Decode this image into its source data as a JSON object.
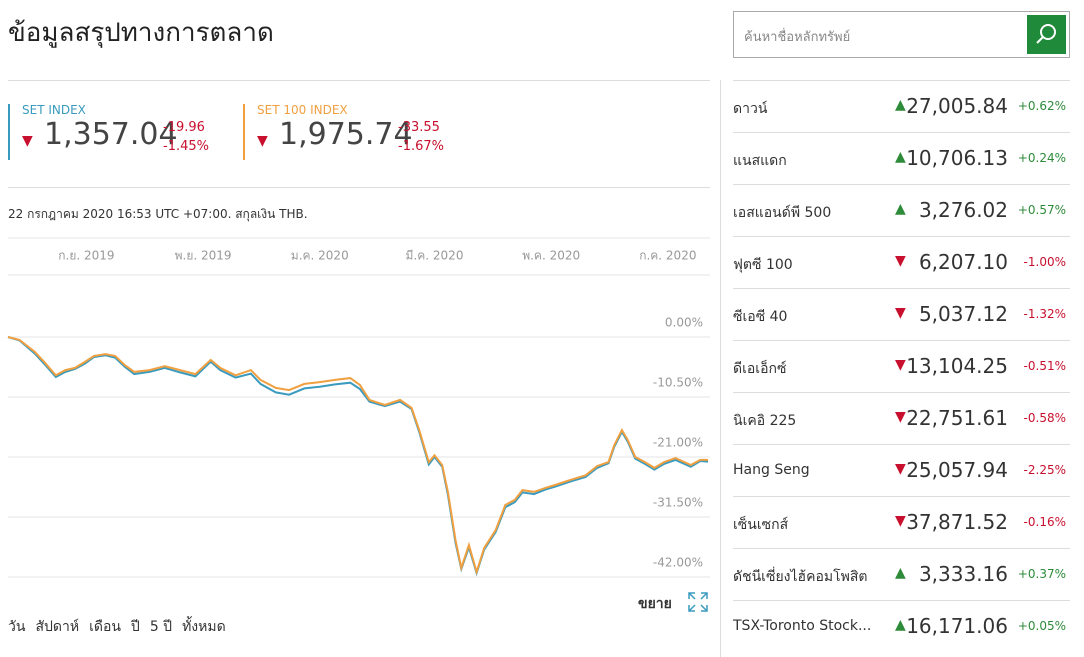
{
  "header": {
    "title": "ข้อมูลสรุปทางการตลาด"
  },
  "search": {
    "placeholder": "ค้นหาชื่อหลักทรัพย์"
  },
  "indices": [
    {
      "name": "SET INDEX",
      "value": "1,357.04",
      "change": "-19.96",
      "change_percent": "-1.45%"
    },
    {
      "name": "SET 100 INDEX",
      "value": "1,975.74",
      "change": "-33.55",
      "change_percent": "-1.67%"
    }
  ],
  "timestamp": "22 กรกฎาคม 2020 16:53 UTC +07:00. สกุลเงิน THB.",
  "chart_data": {
    "type": "line",
    "x": [
      0,
      6,
      14,
      19,
      25,
      30,
      35,
      40,
      45,
      51,
      56,
      61,
      66,
      74,
      82,
      90,
      98,
      106,
      111,
      119,
      127,
      132,
      140,
      147,
      155,
      163,
      171,
      179,
      184,
      189,
      197,
      205,
      211,
      215,
      220,
      223,
      227,
      230,
      234,
      237,
      241,
      245,
      249,
      255,
      260,
      265,
      269,
      275,
      281,
      286,
      294,
      302,
      308,
      314,
      317,
      321,
      324,
      328,
      333,
      338,
      343,
      349,
      357,
      362,
      366
    ],
    "series": [
      {
        "color": "#3a9bbf",
        "values": [
          0.0,
          -0.6,
          -2.9,
          -4.7,
          -7.0,
          -6.1,
          -5.6,
          -4.7,
          -3.5,
          -3.2,
          -3.6,
          -5.2,
          -6.5,
          -6.1,
          -5.4,
          -6.2,
          -6.9,
          -4.3,
          -5.8,
          -7.1,
          -6.4,
          -8.2,
          -9.7,
          -10.1,
          -9.0,
          -8.7,
          -8.3,
          -8.0,
          -9.1,
          -11.3,
          -12.1,
          -11.3,
          -12.6,
          -16.6,
          -22.3,
          -21.0,
          -22.7,
          -27.6,
          -36.0,
          -40.6,
          -36.8,
          -41.3,
          -37.2,
          -34.1,
          -29.8,
          -28.9,
          -27.2,
          -27.5,
          -26.7,
          -26.2,
          -25.3,
          -24.5,
          -22.9,
          -22.1,
          -19.2,
          -16.6,
          -18.3,
          -21.3,
          -22.2,
          -23.2,
          -22.2,
          -21.5,
          -22.7,
          -21.7,
          -21.8
        ]
      },
      {
        "color": "#f0a040",
        "values": [
          0.0,
          -0.5,
          -2.6,
          -4.4,
          -6.7,
          -5.8,
          -5.4,
          -4.4,
          -3.3,
          -3.0,
          -3.3,
          -4.9,
          -6.1,
          -5.8,
          -5.1,
          -5.8,
          -6.5,
          -4.0,
          -5.4,
          -6.7,
          -5.8,
          -7.5,
          -8.9,
          -9.3,
          -8.2,
          -7.9,
          -7.5,
          -7.2,
          -8.4,
          -11.0,
          -11.9,
          -11.0,
          -12.4,
          -16.3,
          -21.9,
          -20.7,
          -22.4,
          -27.1,
          -35.5,
          -40.4,
          -36.4,
          -41.1,
          -36.9,
          -33.8,
          -29.4,
          -28.5,
          -26.8,
          -27.1,
          -26.4,
          -25.9,
          -25.0,
          -24.2,
          -22.6,
          -21.9,
          -18.9,
          -16.3,
          -18.0,
          -21.0,
          -21.9,
          -22.9,
          -21.9,
          -21.2,
          -22.4,
          -21.5,
          -21.5
        ]
      }
    ],
    "xlim": [
      0,
      366
    ],
    "xticks": [
      {
        "value": 41,
        "label": "ก.ย. 2019"
      },
      {
        "value": 102,
        "label": "พ.ย. 2019"
      },
      {
        "value": 163,
        "label": "ม.ค. 2020"
      },
      {
        "value": 223,
        "label": "มี.ค. 2020"
      },
      {
        "value": 284,
        "label": "พ.ค. 2020"
      },
      {
        "value": 345,
        "label": "ก.ค. 2020"
      }
    ],
    "ylim": [
      -42,
      0
    ],
    "yticks": [
      {
        "value": 0,
        "label": "0.00%"
      },
      {
        "value": -10.5,
        "label": "-10.50%"
      },
      {
        "value": -21,
        "label": "-21.00%"
      },
      {
        "value": -31.5,
        "label": "-31.50%"
      },
      {
        "value": -42,
        "label": "-42.00%"
      }
    ],
    "grid": true
  },
  "range_buttons": [
    "วัน",
    "สัปดาห์",
    "เดือน",
    "ปี",
    "5 ปี",
    "ทั้งหมด"
  ],
  "expand_label": "ขยาย",
  "markets": [
    {
      "name": "ดาวน์",
      "value": "27,005.84",
      "change": "+0.62%"
    },
    {
      "name": "แนสแดก",
      "value": "10,706.13",
      "change": "+0.24%"
    },
    {
      "name": "เอสแอนด์พี 500",
      "value": "3,276.02",
      "change": "+0.57%"
    },
    {
      "name": "ฟุตซี 100",
      "value": "6,207.10",
      "change": "-1.00%"
    },
    {
      "name": "ซีเอซี 40",
      "value": "5,037.12",
      "change": "-1.32%"
    },
    {
      "name": "ดีเอเอ็กซ์",
      "value": "13,104.25",
      "change": "-0.51%"
    },
    {
      "name": "นิเคอิ 225",
      "value": "22,751.61",
      "change": "-0.58%"
    },
    {
      "name": "Hang Seng",
      "value": "25,057.94",
      "change": "-2.25%"
    },
    {
      "name": "เซ็นเซกส์",
      "value": "37,871.52",
      "change": "-0.16%"
    },
    {
      "name": "ดัชนีเซี่ยงไฮ้คอมโพสิต",
      "value": "3,333.16",
      "change": "+0.37%"
    },
    {
      "name": "TSX-Toronto Stock...",
      "value": "16,171.06",
      "change": "+0.05%"
    }
  ]
}
